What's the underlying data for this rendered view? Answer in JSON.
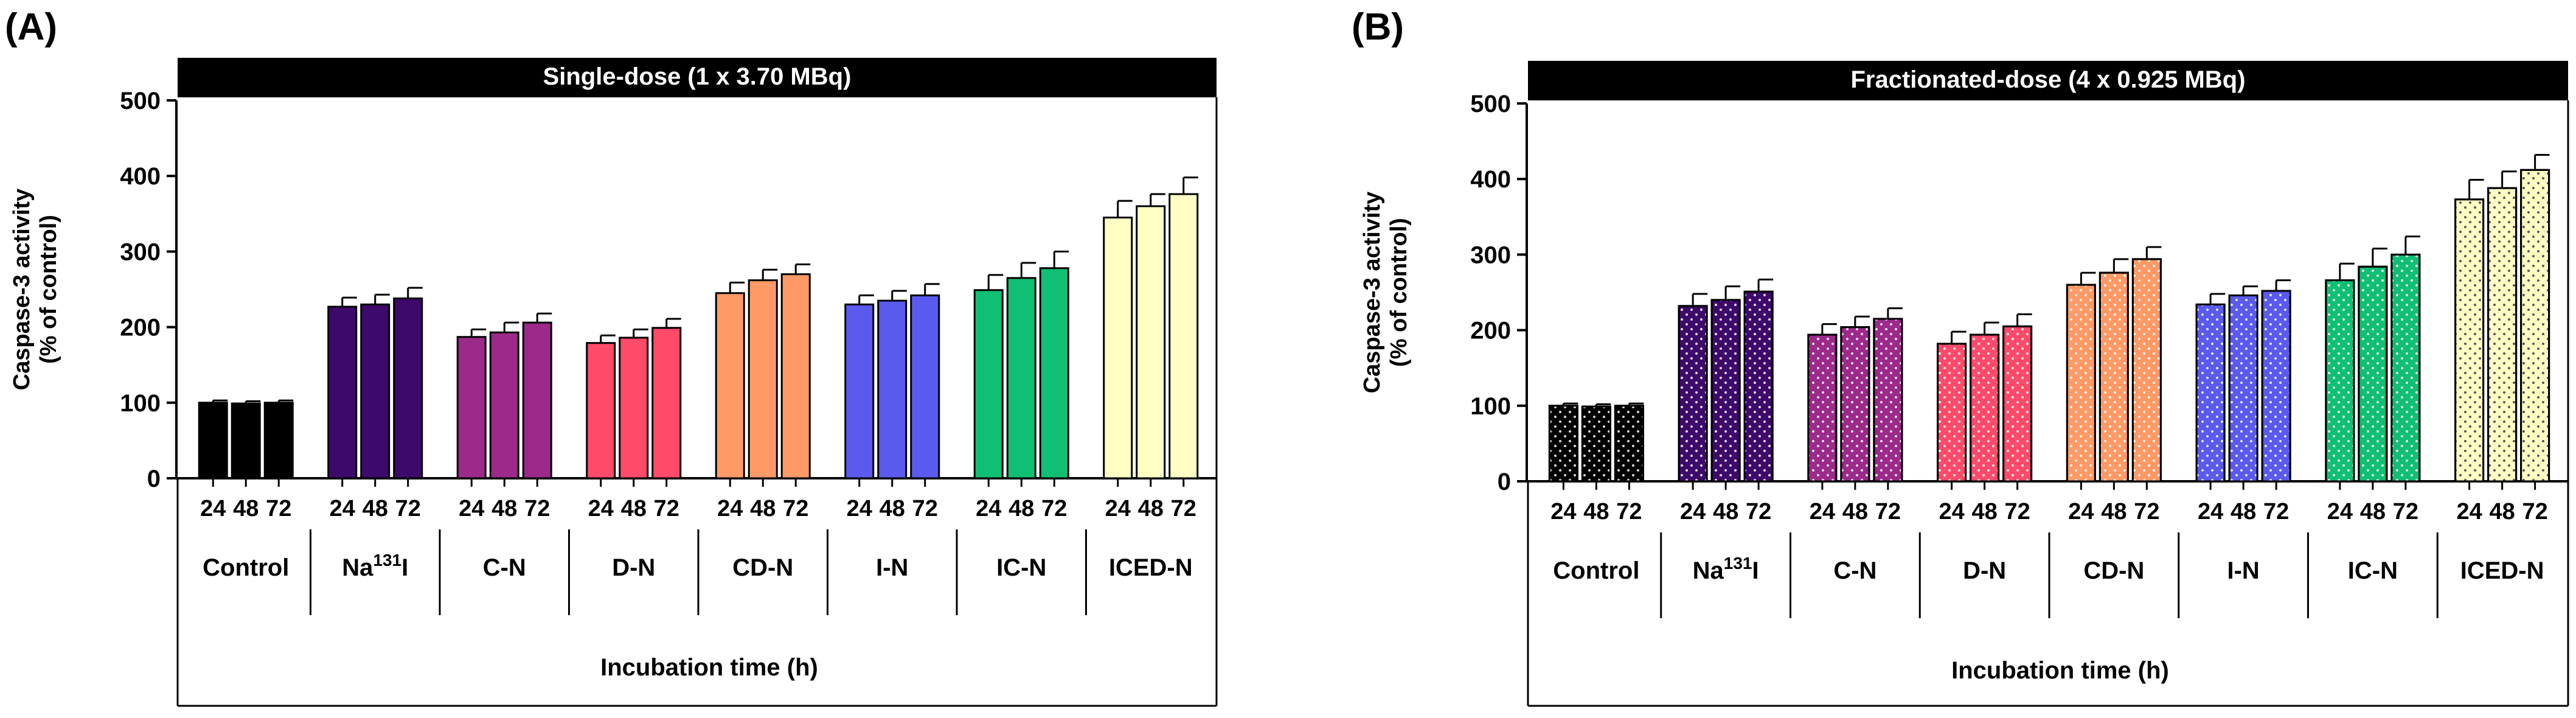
{
  "chart_data": [
    {
      "type": "bar",
      "panel_label": "(A)",
      "title": "Single-dose  (1 x 3.70 MBq)",
      "ylabel_line1": "Caspase-3 activity",
      "ylabel_line2": "(% of control)",
      "xlabel": "Incubation time (h)",
      "ylim": [
        0,
        500
      ],
      "yticks": [
        "0",
        "100",
        "200",
        "300",
        "400",
        "500"
      ],
      "time_labels": [
        "24",
        "48",
        "72"
      ],
      "pattern": "solid",
      "groups": [
        {
          "name": "Control",
          "color": "#000000",
          "values": [
            100,
            99,
            100
          ],
          "errors": [
            3,
            3,
            3
          ]
        },
        {
          "name": "Na131I",
          "name_base": "Na",
          "name_sup": "131",
          "name_tail": "I",
          "color": "#3d0a6b",
          "values": [
            227,
            230,
            238
          ],
          "errors": [
            12,
            13,
            14
          ]
        },
        {
          "name": "C-N",
          "color": "#9b2a8a",
          "values": [
            187,
            193,
            206
          ],
          "errors": [
            10,
            13,
            12
          ]
        },
        {
          "name": "D-N",
          "color": "#ff4a6a",
          "values": [
            179,
            186,
            199
          ],
          "errors": [
            10,
            11,
            12
          ]
        },
        {
          "name": "CD-N",
          "color": "#ff9a66",
          "values": [
            245,
            262,
            270
          ],
          "errors": [
            14,
            14,
            13
          ]
        },
        {
          "name": "I-N",
          "color": "#5a5aee",
          "values": [
            230,
            235,
            242
          ],
          "errors": [
            12,
            13,
            15
          ]
        },
        {
          "name": "IC-N",
          "color": "#10bf73",
          "values": [
            249,
            265,
            278
          ],
          "errors": [
            20,
            20,
            22
          ]
        },
        {
          "name": "ICED-N",
          "color": "#ffffc4",
          "values": [
            345,
            360,
            376
          ],
          "errors": [
            22,
            16,
            22
          ]
        }
      ]
    },
    {
      "type": "bar",
      "panel_label": "(B)",
      "title": "Fractionated-dose (4 x 0.925 MBq)",
      "ylabel_line1": "Caspase-3 activity",
      "ylabel_line2": "(% of control)",
      "xlabel": "Incubation time (h)",
      "ylim": [
        0,
        500
      ],
      "yticks": [
        "0",
        "100",
        "200",
        "300",
        "400",
        "500"
      ],
      "time_labels": [
        "24",
        "48",
        "72"
      ],
      "pattern": "dotted",
      "groups": [
        {
          "name": "Control",
          "color": "#000000",
          "values": [
            100,
            99,
            100
          ],
          "errors": [
            3,
            3,
            3
          ]
        },
        {
          "name": "Na131I",
          "name_base": "Na",
          "name_sup": "131",
          "name_tail": "I",
          "color": "#3d0a6b",
          "values": [
            232,
            240,
            251
          ],
          "errors": [
            16,
            18,
            16
          ]
        },
        {
          "name": "C-N",
          "color": "#9b2a8a",
          "values": [
            194,
            204,
            215
          ],
          "errors": [
            14,
            14,
            14
          ]
        },
        {
          "name": "D-N",
          "color": "#ff4a6a",
          "values": [
            182,
            194,
            205
          ],
          "errors": [
            16,
            16,
            16
          ]
        },
        {
          "name": "CD-N",
          "color": "#ff9a66",
          "values": [
            260,
            276,
            294
          ],
          "errors": [
            16,
            18,
            16
          ]
        },
        {
          "name": "I-N",
          "color": "#5a5aee",
          "values": [
            234,
            246,
            252
          ],
          "errors": [
            14,
            12,
            14
          ]
        },
        {
          "name": "IC-N",
          "color": "#10bf73",
          "values": [
            266,
            284,
            300
          ],
          "errors": [
            22,
            24,
            24
          ]
        },
        {
          "name": "ICED-N",
          "color": "#ffffc4",
          "values": [
            373,
            388,
            412
          ],
          "errors": [
            26,
            22,
            20
          ]
        }
      ]
    }
  ]
}
